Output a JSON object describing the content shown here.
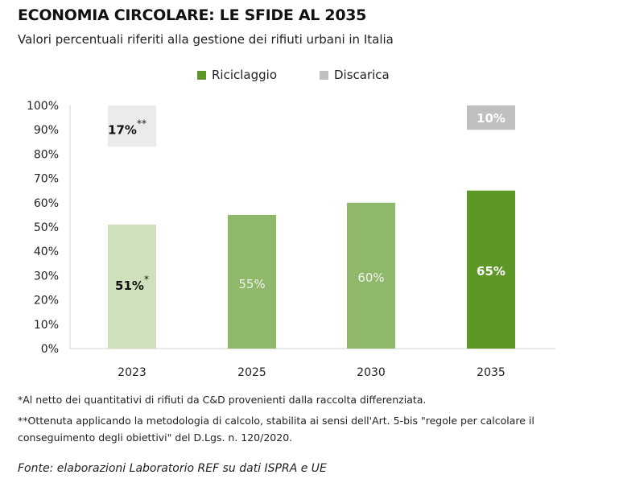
{
  "title": "ECONOMIA CIRCOLARE: LE SFIDE AL 2035",
  "subtitle": "Valori percentuali riferiti alla gestione dei rifiuti urbani in Italia",
  "notes": [
    "*Al netto dei quantitativi di rifiuti da C&D provenienti dalla raccolta differenziata.",
    "**Ottenuta applicando la metodologia di calcolo, stabilita ai sensi dell'Art. 5-bis \"regole per calcolare il conseguimento degli obiettivi\" del D.Lgs. n. 120/2020."
  ],
  "source": "Fonte: elaborazioni Laboratorio REF su dati ISPRA e UE",
  "chart_data": {
    "type": "bar",
    "categories": [
      "2023",
      "2025",
      "2030",
      "2035"
    ],
    "series": [
      {
        "name": "Riciclaggio",
        "values": [
          51,
          55,
          60,
          65
        ],
        "labels": [
          "51%",
          "55%",
          "60%",
          "65%"
        ],
        "label_suffix": [
          "*",
          "",
          "",
          ""
        ],
        "colors": [
          "#cfe0bd",
          "#8fb86a",
          "#8fb86a",
          "#5d9727"
        ],
        "label_colors": [
          "#111111",
          "#f2f2f2",
          "#f2f2f2",
          "#ffffff"
        ],
        "legend_color": "#5d9727"
      },
      {
        "name": "Discarica",
        "values": [
          17,
          null,
          null,
          10
        ],
        "labels": [
          "17%",
          "",
          "",
          "10%"
        ],
        "label_suffix": [
          "**",
          "",
          "",
          ""
        ],
        "colors": [
          "#ebebeb",
          null,
          null,
          "#bfbfbf"
        ],
        "label_colors": [
          "#111111",
          null,
          null,
          "#ffffff"
        ],
        "legend_color": "#bfbfbf",
        "stacked_from_top": true
      }
    ],
    "yticks": [
      "0%",
      "10%",
      "20%",
      "30%",
      "40%",
      "50%",
      "60%",
      "70%",
      "80%",
      "90%",
      "100%"
    ],
    "ylim": [
      0,
      100
    ],
    "legend_position": "top-center",
    "grid": false
  }
}
